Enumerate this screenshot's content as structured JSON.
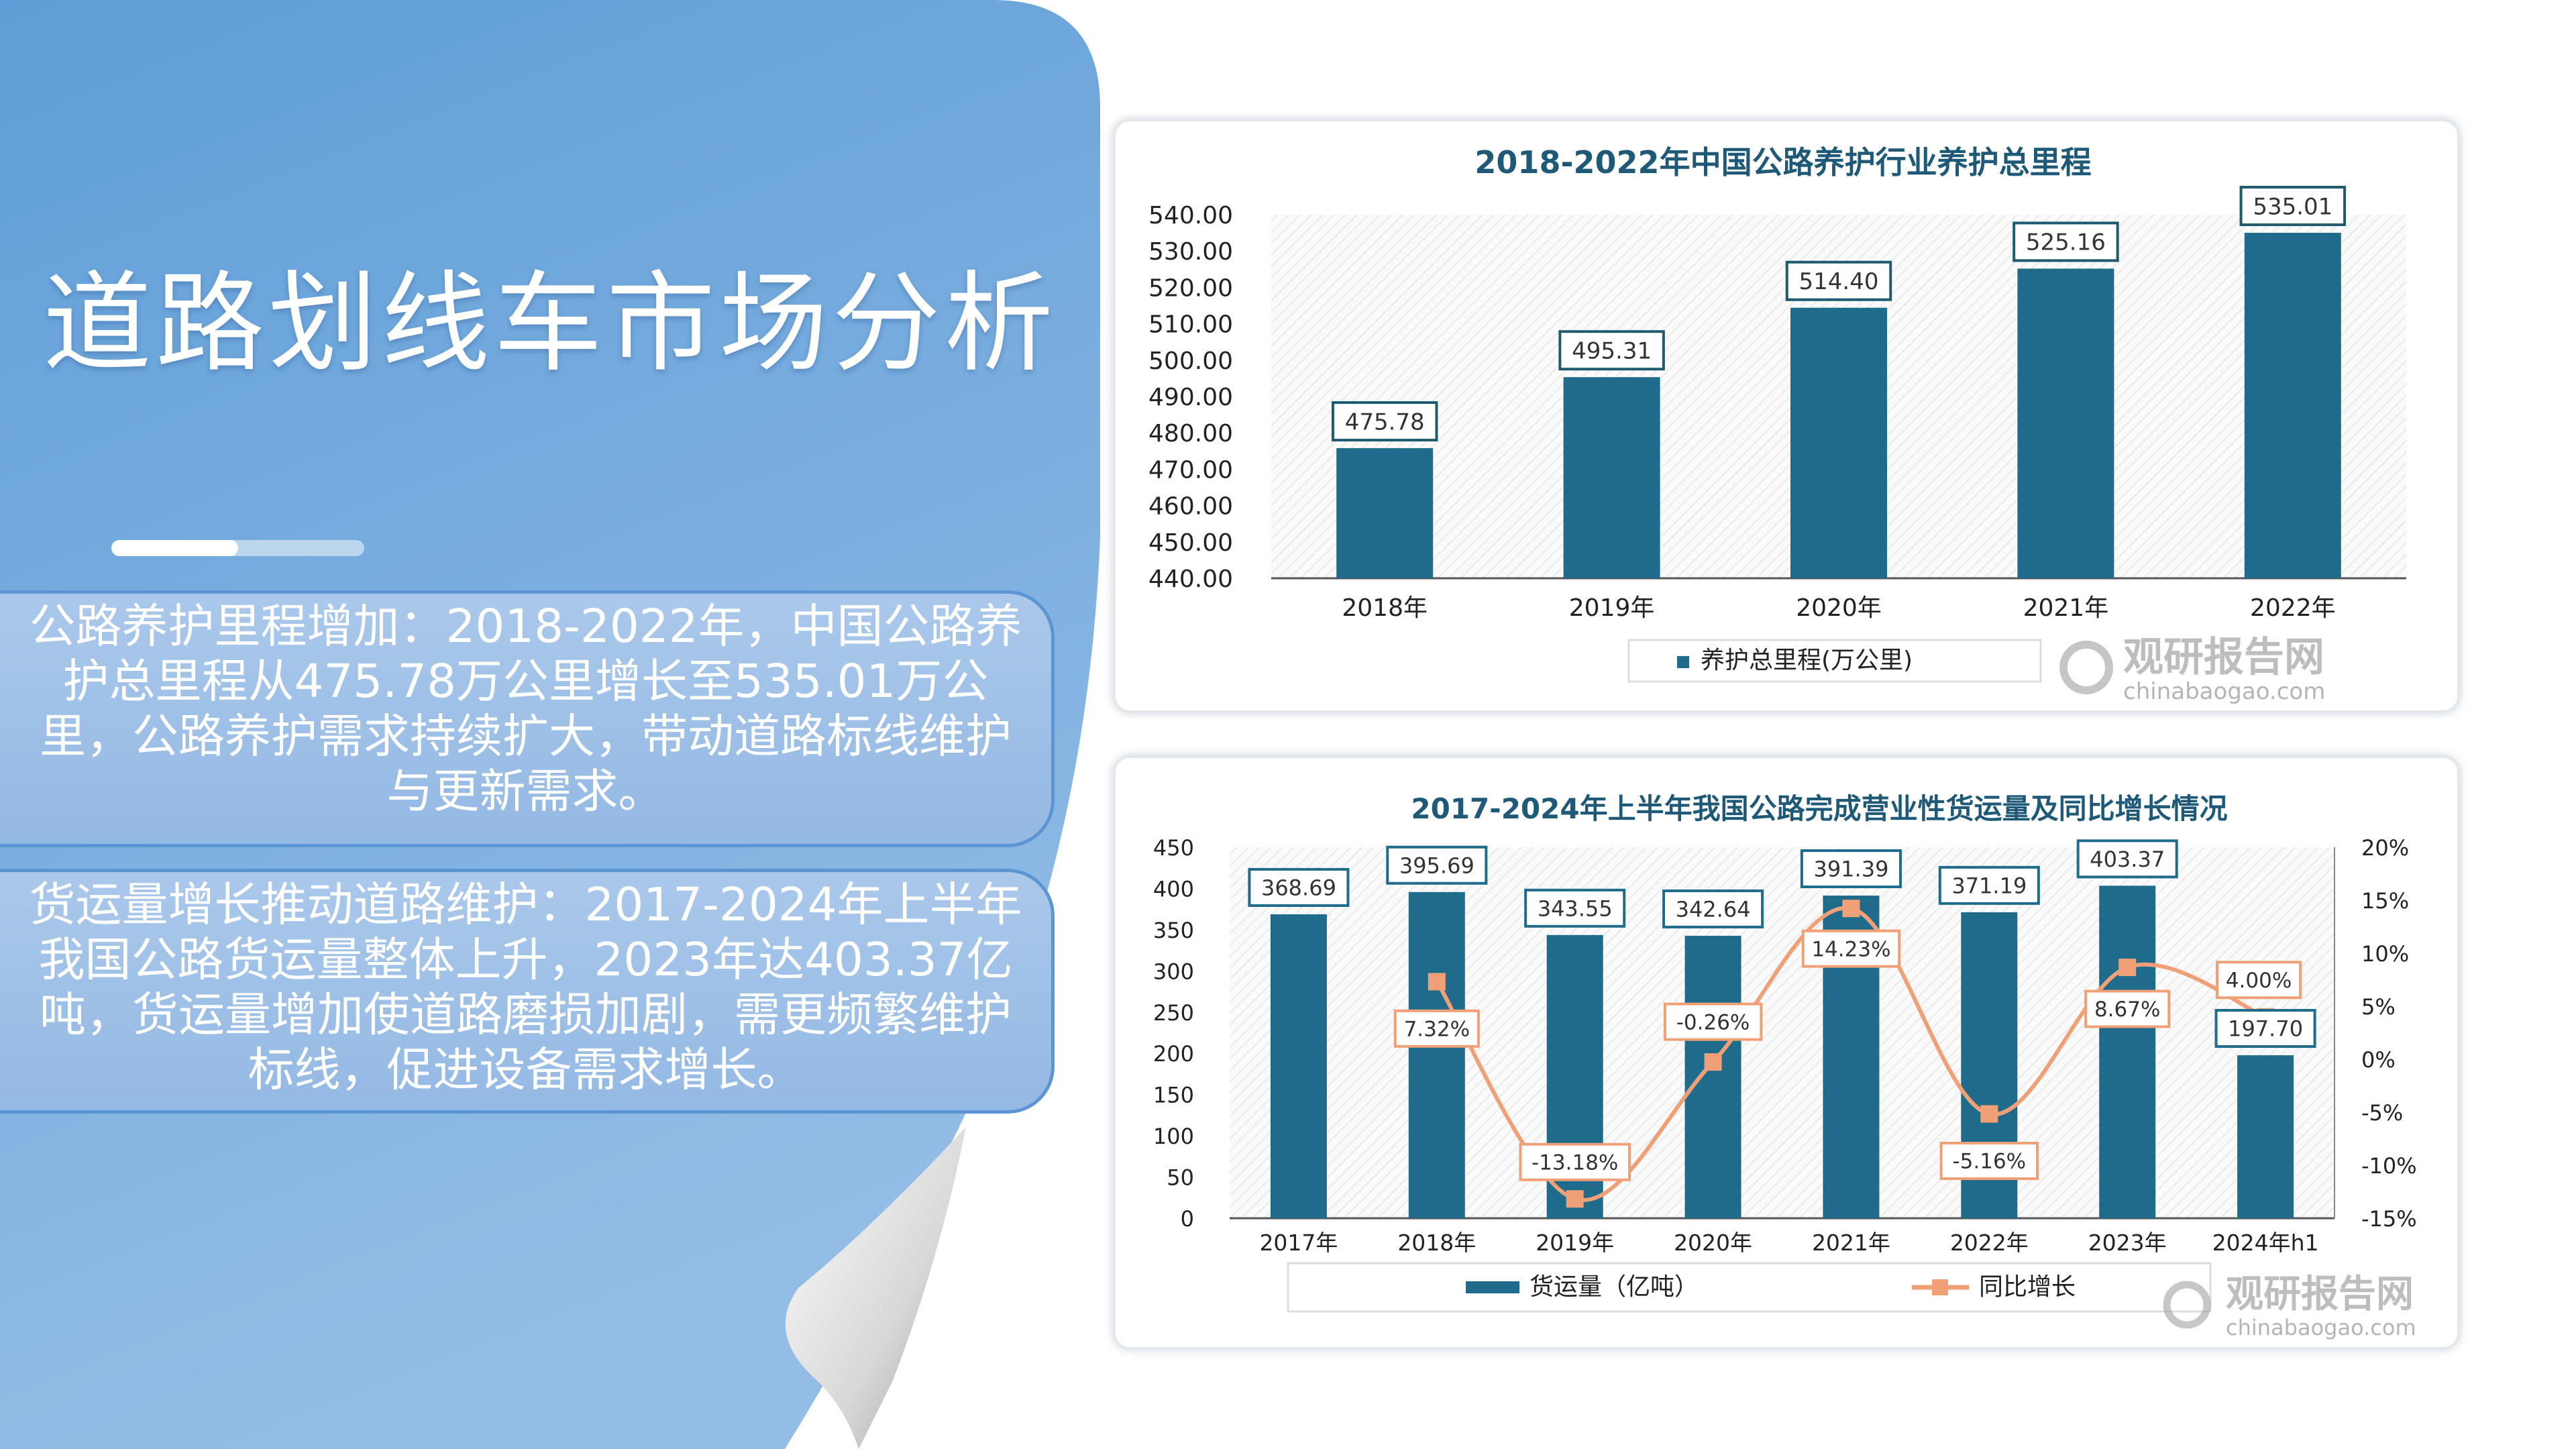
{
  "page_title": "道路划线车市场分析",
  "progress_indicator": 0.5,
  "insights": [
    {
      "text": "公路养护里程增加：2018-2022年，中国公路养护总里程从475.78万公里增长至535.01万公里，公路养护需求持续扩大，带动道路标线维护与更新需求。"
    },
    {
      "text": "货运量增长推动道路维护：2017-2024年上半年我国公路货运量整体上升，2023年达403.37亿吨，货运量增加使道路磨损加剧，需更频繁维护标线，促进设备需求增长。"
    }
  ],
  "watermark": {
    "name": "观研报告网",
    "url": "chinabaogao.com"
  },
  "colors": {
    "panel": "#6aa4da",
    "bar": "#1f6b8c",
    "line": "#f0a077",
    "title": "#1e5a78"
  },
  "chart_data": [
    {
      "type": "bar",
      "title": "2018-2022年中国公路养护行业养护总里程",
      "categories": [
        "2018年",
        "2019年",
        "2020年",
        "2021年",
        "2022年"
      ],
      "series": [
        {
          "name": "养护总里程(万公里)",
          "values": [
            475.78,
            495.31,
            514.4,
            525.16,
            535.01
          ]
        }
      ],
      "value_labels": [
        "475.78",
        "495.31",
        "514.40",
        "525.16",
        "535.01"
      ],
      "ylim": [
        440,
        540
      ],
      "yticks": [
        "540.00",
        "530.00",
        "520.00",
        "510.00",
        "500.00",
        "490.00",
        "480.00",
        "470.00",
        "460.00",
        "450.00",
        "440.00"
      ],
      "legend": "bottom"
    },
    {
      "type": "bar+line",
      "title": "2017-2024年上半年我国公路完成营业性货运量及同比增长情况",
      "categories": [
        "2017年",
        "2018年",
        "2019年",
        "2020年",
        "2021年",
        "2022年",
        "2023年",
        "2024年h1"
      ],
      "series": [
        {
          "name": "货运量（亿吨）",
          "type": "bar",
          "axis": "left",
          "values": [
            368.69,
            395.69,
            343.55,
            342.64,
            391.39,
            371.19,
            403.37,
            197.7
          ],
          "labels": [
            "368.69",
            "395.69",
            "343.55",
            "342.64",
            "391.39",
            "371.19",
            "403.37",
            "197.70"
          ]
        },
        {
          "name": "同比增长",
          "type": "line",
          "axis": "right",
          "values": [
            null,
            7.32,
            -13.18,
            -0.26,
            14.23,
            -5.16,
            8.67,
            4.0
          ],
          "labels": [
            "",
            "7.32%",
            "-13.18%",
            "-0.26%",
            "14.23%",
            "-5.16%",
            "8.67%",
            "4.00%"
          ]
        }
      ],
      "ylim_left": [
        0,
        450
      ],
      "ylim_right": [
        -15,
        20
      ],
      "yticks_left": [
        "450",
        "400",
        "350",
        "300",
        "250",
        "200",
        "150",
        "100",
        "50",
        "0"
      ],
      "yticks_right": [
        "20%",
        "15%",
        "10%",
        "5%",
        "0%",
        "-5%",
        "-10%",
        "-15%"
      ],
      "legend": "bottom"
    }
  ]
}
